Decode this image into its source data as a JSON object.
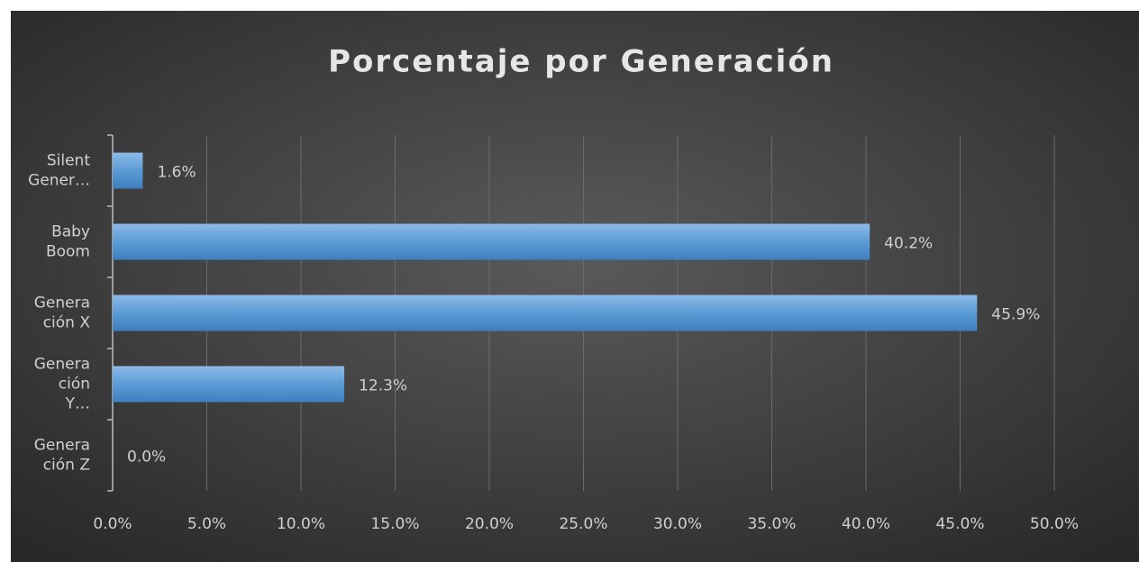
{
  "chart_data": {
    "type": "hbar",
    "title": "Porcentaje por Generación",
    "categories": [
      "Silent Gener…",
      "Baby Boom",
      "Generación X",
      "Generación Y…",
      "Generación Z"
    ],
    "values": [
      1.6,
      40.2,
      45.9,
      12.3,
      0.0
    ],
    "value_labels": [
      "1.6%",
      "40.2%",
      "45.9%",
      "12.3%",
      "0.0%"
    ],
    "color": "#5b9bd5",
    "xlim": [
      0,
      50
    ],
    "xticks": [
      {
        "value": 0,
        "label": "0.0%"
      },
      {
        "value": 5,
        "label": "5.0%"
      },
      {
        "value": 10,
        "label": "10.0%"
      },
      {
        "value": 15,
        "label": "15.0%"
      },
      {
        "value": 20,
        "label": "20.0%"
      },
      {
        "value": 25,
        "label": "25.0%"
      },
      {
        "value": 30,
        "label": "30.0%"
      },
      {
        "value": 35,
        "label": "35.0%"
      },
      {
        "value": 40,
        "label": "40.0%"
      },
      {
        "value": 45,
        "label": "45.0%"
      },
      {
        "value": 50,
        "label": "50.0%"
      }
    ],
    "grid": true
  }
}
